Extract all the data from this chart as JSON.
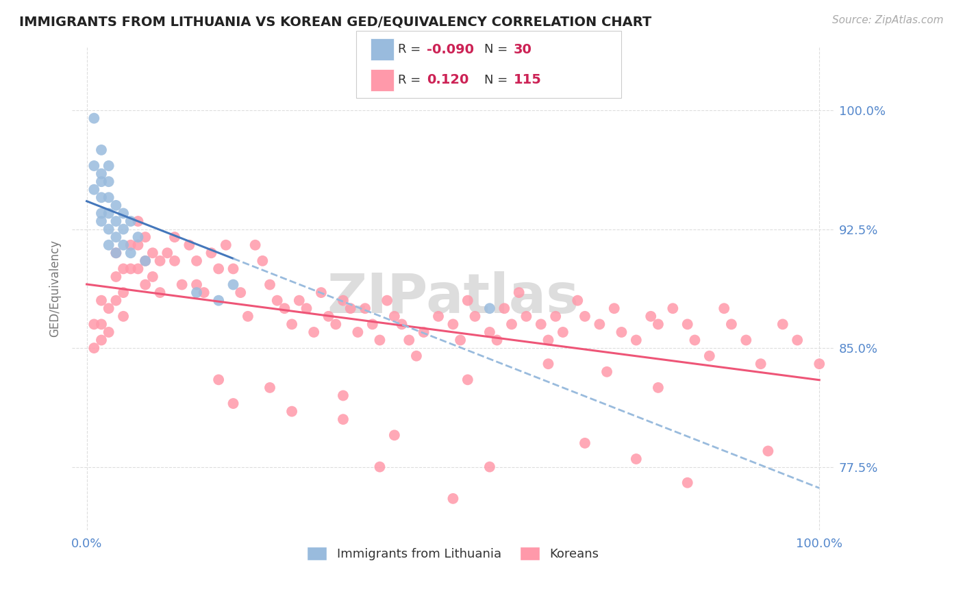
{
  "title": "IMMIGRANTS FROM LITHUANIA VS KOREAN GED/EQUIVALENCY CORRELATION CHART",
  "source_text": "Source: ZipAtlas.com",
  "ylabel": "GED/Equivalency",
  "xlim": [
    -2.0,
    102.0
  ],
  "ylim": [
    73.5,
    104.0
  ],
  "yticks": [
    77.5,
    85.0,
    92.5,
    100.0
  ],
  "ytick_labels": [
    "77.5%",
    "85.0%",
    "92.5%",
    "100.0%"
  ],
  "xticks": [
    0.0,
    100.0
  ],
  "xtick_labels": [
    "0.0%",
    "100.0%"
  ],
  "blue_color": "#99BBDD",
  "pink_color": "#FF99AA",
  "blue_line_color": "#4477BB",
  "pink_line_color": "#EE5577",
  "blue_dash_color": "#99BBDD",
  "axis_label_color": "#5588CC",
  "background_color": "#FFFFFF",
  "watermark": "ZIPatlas",
  "watermark_color": "#DDDDDD",
  "grid_color": "#DDDDDD",
  "note_r1": "-0.090",
  "note_n1": "30",
  "note_r2": "0.120",
  "note_n2": "115",
  "blue_x": [
    1,
    1,
    1,
    2,
    2,
    2,
    2,
    2,
    2,
    3,
    3,
    3,
    3,
    3,
    3,
    4,
    4,
    4,
    4,
    5,
    5,
    5,
    6,
    6,
    7,
    8,
    15,
    18,
    20,
    55
  ],
  "blue_y": [
    99.5,
    96.5,
    95.0,
    97.5,
    96.0,
    95.5,
    94.5,
    93.5,
    93.0,
    96.5,
    95.5,
    94.5,
    93.5,
    92.5,
    91.5,
    94.0,
    93.0,
    92.0,
    91.0,
    93.5,
    92.5,
    91.5,
    93.0,
    91.0,
    92.0,
    90.5,
    88.5,
    88.0,
    89.0,
    87.5
  ],
  "pink_x": [
    1,
    1,
    2,
    2,
    2,
    3,
    3,
    4,
    4,
    4,
    5,
    5,
    5,
    6,
    6,
    7,
    7,
    7,
    8,
    8,
    8,
    9,
    9,
    10,
    10,
    11,
    12,
    12,
    13,
    14,
    15,
    15,
    16,
    17,
    18,
    19,
    20,
    21,
    22,
    23,
    24,
    25,
    26,
    27,
    28,
    29,
    30,
    31,
    32,
    33,
    34,
    35,
    36,
    37,
    38,
    39,
    40,
    41,
    42,
    43,
    44,
    45,
    46,
    48,
    50,
    51,
    52,
    53,
    55,
    56,
    57,
    58,
    59,
    60,
    62,
    63,
    64,
    65,
    67,
    68,
    70,
    72,
    73,
    75,
    77,
    78,
    80,
    82,
    83,
    85,
    87,
    88,
    90,
    92,
    95,
    97,
    100,
    28,
    35,
    42,
    55,
    68,
    75,
    82,
    93,
    40,
    50,
    18,
    25,
    63,
    71,
    35,
    20,
    52,
    78
  ],
  "pink_y": [
    86.5,
    85.0,
    88.0,
    86.5,
    85.5,
    87.5,
    86.0,
    91.0,
    89.5,
    88.0,
    90.0,
    88.5,
    87.0,
    91.5,
    90.0,
    93.0,
    91.5,
    90.0,
    92.0,
    90.5,
    89.0,
    91.0,
    89.5,
    90.5,
    88.5,
    91.0,
    92.0,
    90.5,
    89.0,
    91.5,
    90.5,
    89.0,
    88.5,
    91.0,
    90.0,
    91.5,
    90.0,
    88.5,
    87.0,
    91.5,
    90.5,
    89.0,
    88.0,
    87.5,
    86.5,
    88.0,
    87.5,
    86.0,
    88.5,
    87.0,
    86.5,
    88.0,
    87.5,
    86.0,
    87.5,
    86.5,
    85.5,
    88.0,
    87.0,
    86.5,
    85.5,
    84.5,
    86.0,
    87.0,
    86.5,
    85.5,
    88.0,
    87.0,
    86.0,
    85.5,
    87.5,
    86.5,
    88.5,
    87.0,
    86.5,
    85.5,
    87.0,
    86.0,
    88.0,
    87.0,
    86.5,
    87.5,
    86.0,
    85.5,
    87.0,
    86.5,
    87.5,
    86.5,
    85.5,
    84.5,
    87.5,
    86.5,
    85.5,
    84.0,
    86.5,
    85.5,
    84.0,
    81.0,
    80.5,
    79.5,
    77.5,
    79.0,
    78.0,
    76.5,
    78.5,
    77.5,
    75.5,
    83.0,
    82.5,
    84.0,
    83.5,
    82.0,
    81.5,
    83.0,
    82.5
  ]
}
